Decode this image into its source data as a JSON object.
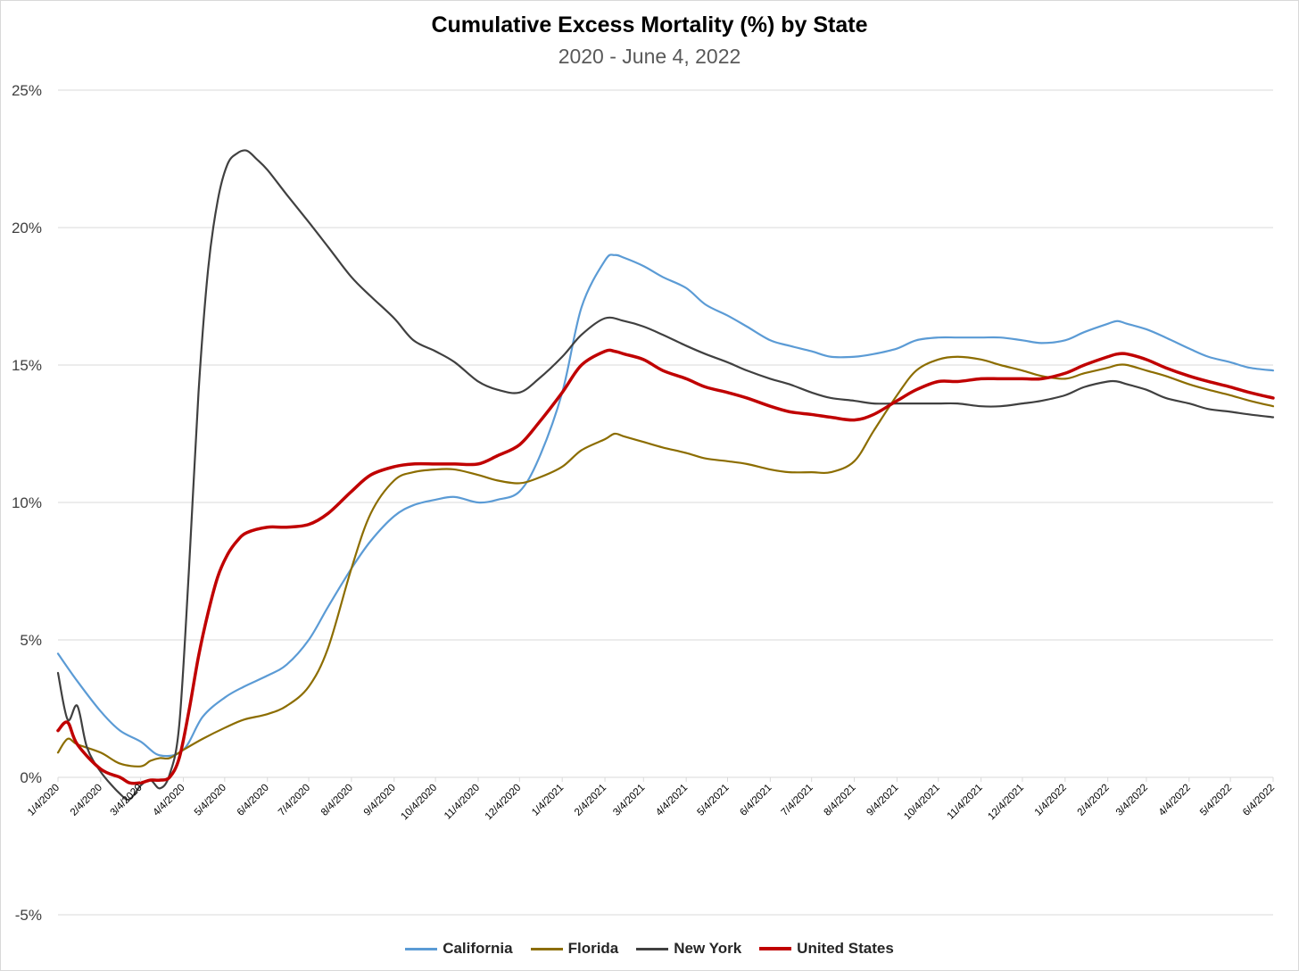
{
  "chart_data": {
    "type": "line",
    "title": "Cumulative Excess Mortality (%) by State",
    "subtitle": "2020 - June 4, 2022",
    "xlabel": "",
    "ylabel": "",
    "ylim": [
      -5,
      25
    ],
    "yticks": [
      -5,
      0,
      5,
      10,
      15,
      20,
      25
    ],
    "ytick_labels": [
      "-5%",
      "0%",
      "5%",
      "10%",
      "15%",
      "20%",
      "25%"
    ],
    "xticks": [
      "1/4/2020",
      "2/4/2020",
      "3/4/2020",
      "4/4/2020",
      "5/4/2020",
      "6/4/2020",
      "7/4/2020",
      "8/4/2020",
      "9/4/2020",
      "10/4/2020",
      "11/4/2020",
      "12/4/2020",
      "1/4/2021",
      "2/4/2021",
      "3/4/2021",
      "4/4/2021",
      "5/4/2021",
      "6/4/2021",
      "7/4/2021",
      "8/4/2021",
      "9/4/2021",
      "10/4/2021",
      "11/4/2021",
      "12/4/2021",
      "1/4/2022",
      "2/4/2022",
      "3/4/2022",
      "4/4/2022",
      "5/4/2022",
      "6/4/2022"
    ],
    "grid": true,
    "legend_position": "bottom",
    "series": [
      {
        "name": "California",
        "color": "#5b9bd5",
        "points": [
          [
            "2020-01-04",
            4.5
          ],
          [
            "2020-01-18",
            3.5
          ],
          [
            "2020-02-04",
            2.4
          ],
          [
            "2020-02-18",
            1.7
          ],
          [
            "2020-03-04",
            1.3
          ],
          [
            "2020-03-18",
            0.8
          ],
          [
            "2020-04-04",
            1.0
          ],
          [
            "2020-04-18",
            2.2
          ],
          [
            "2020-05-04",
            2.9
          ],
          [
            "2020-05-18",
            3.3
          ],
          [
            "2020-06-04",
            3.7
          ],
          [
            "2020-06-18",
            4.1
          ],
          [
            "2020-07-04",
            5.0
          ],
          [
            "2020-07-18",
            6.2
          ],
          [
            "2020-08-04",
            7.6
          ],
          [
            "2020-08-18",
            8.6
          ],
          [
            "2020-09-04",
            9.5
          ],
          [
            "2020-09-18",
            9.9
          ],
          [
            "2020-10-04",
            10.1
          ],
          [
            "2020-10-18",
            10.2
          ],
          [
            "2020-11-04",
            10.0
          ],
          [
            "2020-11-18",
            10.1
          ],
          [
            "2020-12-04",
            10.4
          ],
          [
            "2020-12-18",
            11.6
          ],
          [
            "2021-01-04",
            14.0
          ],
          [
            "2021-01-18",
            17.1
          ],
          [
            "2021-02-04",
            18.8
          ],
          [
            "2021-02-11",
            19.0
          ],
          [
            "2021-02-18",
            18.9
          ],
          [
            "2021-03-04",
            18.6
          ],
          [
            "2021-03-18",
            18.2
          ],
          [
            "2021-04-04",
            17.8
          ],
          [
            "2021-04-18",
            17.2
          ],
          [
            "2021-05-04",
            16.8
          ],
          [
            "2021-05-18",
            16.4
          ],
          [
            "2021-06-04",
            15.9
          ],
          [
            "2021-06-18",
            15.7
          ],
          [
            "2021-07-04",
            15.5
          ],
          [
            "2021-07-18",
            15.3
          ],
          [
            "2021-08-04",
            15.3
          ],
          [
            "2021-08-18",
            15.4
          ],
          [
            "2021-09-04",
            15.6
          ],
          [
            "2021-09-18",
            15.9
          ],
          [
            "2021-10-04",
            16.0
          ],
          [
            "2021-10-18",
            16.0
          ],
          [
            "2021-11-04",
            16.0
          ],
          [
            "2021-11-18",
            16.0
          ],
          [
            "2021-12-04",
            15.9
          ],
          [
            "2021-12-18",
            15.8
          ],
          [
            "2022-01-04",
            15.9
          ],
          [
            "2022-01-18",
            16.2
          ],
          [
            "2022-02-04",
            16.5
          ],
          [
            "2022-02-11",
            16.6
          ],
          [
            "2022-02-18",
            16.5
          ],
          [
            "2022-03-04",
            16.3
          ],
          [
            "2022-03-18",
            16.0
          ],
          [
            "2022-04-04",
            15.6
          ],
          [
            "2022-04-18",
            15.3
          ],
          [
            "2022-05-04",
            15.1
          ],
          [
            "2022-05-18",
            14.9
          ],
          [
            "2022-06-04",
            14.8
          ]
        ]
      },
      {
        "name": "Florida",
        "color": "#8c6d00",
        "points": [
          [
            "2020-01-04",
            0.9
          ],
          [
            "2020-01-11",
            1.4
          ],
          [
            "2020-01-18",
            1.2
          ],
          [
            "2020-02-04",
            0.9
          ],
          [
            "2020-02-18",
            0.5
          ],
          [
            "2020-03-04",
            0.4
          ],
          [
            "2020-03-11",
            0.6
          ],
          [
            "2020-03-18",
            0.7
          ],
          [
            "2020-03-25",
            0.7
          ],
          [
            "2020-04-04",
            1.0
          ],
          [
            "2020-04-18",
            1.4
          ],
          [
            "2020-05-04",
            1.8
          ],
          [
            "2020-05-18",
            2.1
          ],
          [
            "2020-06-04",
            2.3
          ],
          [
            "2020-06-18",
            2.6
          ],
          [
            "2020-07-04",
            3.3
          ],
          [
            "2020-07-18",
            4.7
          ],
          [
            "2020-08-04",
            7.6
          ],
          [
            "2020-08-18",
            9.6
          ],
          [
            "2020-09-04",
            10.8
          ],
          [
            "2020-09-18",
            11.1
          ],
          [
            "2020-10-04",
            11.2
          ],
          [
            "2020-10-18",
            11.2
          ],
          [
            "2020-11-04",
            11.0
          ],
          [
            "2020-11-18",
            10.8
          ],
          [
            "2020-12-04",
            10.7
          ],
          [
            "2020-12-18",
            10.9
          ],
          [
            "2021-01-04",
            11.3
          ],
          [
            "2021-01-18",
            11.9
          ],
          [
            "2021-02-04",
            12.3
          ],
          [
            "2021-02-11",
            12.5
          ],
          [
            "2021-02-18",
            12.4
          ],
          [
            "2021-03-04",
            12.2
          ],
          [
            "2021-03-18",
            12.0
          ],
          [
            "2021-04-04",
            11.8
          ],
          [
            "2021-04-18",
            11.6
          ],
          [
            "2021-05-04",
            11.5
          ],
          [
            "2021-05-18",
            11.4
          ],
          [
            "2021-06-04",
            11.2
          ],
          [
            "2021-06-18",
            11.1
          ],
          [
            "2021-07-04",
            11.1
          ],
          [
            "2021-07-18",
            11.1
          ],
          [
            "2021-08-04",
            11.5
          ],
          [
            "2021-08-18",
            12.6
          ],
          [
            "2021-09-04",
            13.9
          ],
          [
            "2021-09-18",
            14.8
          ],
          [
            "2021-10-04",
            15.2
          ],
          [
            "2021-10-18",
            15.3
          ],
          [
            "2021-11-04",
            15.2
          ],
          [
            "2021-11-18",
            15.0
          ],
          [
            "2021-12-04",
            14.8
          ],
          [
            "2021-12-18",
            14.6
          ],
          [
            "2022-01-04",
            14.5
          ],
          [
            "2022-01-18",
            14.7
          ],
          [
            "2022-02-04",
            14.9
          ],
          [
            "2022-02-11",
            15.0
          ],
          [
            "2022-02-18",
            15.0
          ],
          [
            "2022-03-04",
            14.8
          ],
          [
            "2022-03-18",
            14.6
          ],
          [
            "2022-04-04",
            14.3
          ],
          [
            "2022-04-18",
            14.1
          ],
          [
            "2022-05-04",
            13.9
          ],
          [
            "2022-05-18",
            13.7
          ],
          [
            "2022-06-04",
            13.5
          ]
        ]
      },
      {
        "name": "New York",
        "color": "#404040",
        "points": [
          [
            "2020-01-04",
            3.8
          ],
          [
            "2020-01-11",
            2.1
          ],
          [
            "2020-01-18",
            2.6
          ],
          [
            "2020-01-25",
            1.1
          ],
          [
            "2020-02-04",
            0.2
          ],
          [
            "2020-02-18",
            -0.6
          ],
          [
            "2020-02-25",
            -0.8
          ],
          [
            "2020-03-04",
            -0.3
          ],
          [
            "2020-03-11",
            -0.1
          ],
          [
            "2020-03-18",
            -0.4
          ],
          [
            "2020-03-25",
            0.1
          ],
          [
            "2020-04-01",
            1.9
          ],
          [
            "2020-04-08",
            7.5
          ],
          [
            "2020-04-15",
            14.0
          ],
          [
            "2020-04-22",
            18.5
          ],
          [
            "2020-04-29",
            21.0
          ],
          [
            "2020-05-06",
            22.3
          ],
          [
            "2020-05-13",
            22.7
          ],
          [
            "2020-05-20",
            22.8
          ],
          [
            "2020-05-27",
            22.5
          ],
          [
            "2020-06-04",
            22.1
          ],
          [
            "2020-06-18",
            21.2
          ],
          [
            "2020-07-04",
            20.2
          ],
          [
            "2020-07-18",
            19.3
          ],
          [
            "2020-08-04",
            18.2
          ],
          [
            "2020-08-18",
            17.5
          ],
          [
            "2020-09-04",
            16.7
          ],
          [
            "2020-09-18",
            15.9
          ],
          [
            "2020-10-04",
            15.5
          ],
          [
            "2020-10-18",
            15.1
          ],
          [
            "2020-11-04",
            14.4
          ],
          [
            "2020-11-18",
            14.1
          ],
          [
            "2020-12-04",
            14.0
          ],
          [
            "2020-12-18",
            14.5
          ],
          [
            "2021-01-04",
            15.3
          ],
          [
            "2021-01-18",
            16.1
          ],
          [
            "2021-02-04",
            16.7
          ],
          [
            "2021-02-18",
            16.6
          ],
          [
            "2021-03-04",
            16.4
          ],
          [
            "2021-03-18",
            16.1
          ],
          [
            "2021-04-04",
            15.7
          ],
          [
            "2021-04-18",
            15.4
          ],
          [
            "2021-05-04",
            15.1
          ],
          [
            "2021-05-18",
            14.8
          ],
          [
            "2021-06-04",
            14.5
          ],
          [
            "2021-06-18",
            14.3
          ],
          [
            "2021-07-04",
            14.0
          ],
          [
            "2021-07-18",
            13.8
          ],
          [
            "2021-08-04",
            13.7
          ],
          [
            "2021-08-18",
            13.6
          ],
          [
            "2021-09-04",
            13.6
          ],
          [
            "2021-09-18",
            13.6
          ],
          [
            "2021-10-04",
            13.6
          ],
          [
            "2021-10-18",
            13.6
          ],
          [
            "2021-11-04",
            13.5
          ],
          [
            "2021-11-18",
            13.5
          ],
          [
            "2021-12-04",
            13.6
          ],
          [
            "2021-12-18",
            13.7
          ],
          [
            "2022-01-04",
            13.9
          ],
          [
            "2022-01-18",
            14.2
          ],
          [
            "2022-02-04",
            14.4
          ],
          [
            "2022-02-11",
            14.4
          ],
          [
            "2022-02-18",
            14.3
          ],
          [
            "2022-03-04",
            14.1
          ],
          [
            "2022-03-18",
            13.8
          ],
          [
            "2022-04-04",
            13.6
          ],
          [
            "2022-04-18",
            13.4
          ],
          [
            "2022-05-04",
            13.3
          ],
          [
            "2022-05-18",
            13.2
          ],
          [
            "2022-06-04",
            13.1
          ]
        ]
      },
      {
        "name": "United States",
        "color": "#c00000",
        "points": [
          [
            "2020-01-04",
            1.7
          ],
          [
            "2020-01-11",
            2.0
          ],
          [
            "2020-01-18",
            1.2
          ],
          [
            "2020-02-04",
            0.3
          ],
          [
            "2020-02-18",
            0.0
          ],
          [
            "2020-02-25",
            -0.2
          ],
          [
            "2020-03-04",
            -0.2
          ],
          [
            "2020-03-11",
            -0.1
          ],
          [
            "2020-03-18",
            -0.1
          ],
          [
            "2020-03-25",
            0.0
          ],
          [
            "2020-04-01",
            0.7
          ],
          [
            "2020-04-08",
            2.4
          ],
          [
            "2020-04-15",
            4.4
          ],
          [
            "2020-04-22",
            6.0
          ],
          [
            "2020-04-29",
            7.3
          ],
          [
            "2020-05-06",
            8.1
          ],
          [
            "2020-05-13",
            8.6
          ],
          [
            "2020-05-20",
            8.9
          ],
          [
            "2020-06-04",
            9.1
          ],
          [
            "2020-06-18",
            9.1
          ],
          [
            "2020-07-04",
            9.2
          ],
          [
            "2020-07-18",
            9.6
          ],
          [
            "2020-08-04",
            10.4
          ],
          [
            "2020-08-18",
            11.0
          ],
          [
            "2020-09-04",
            11.3
          ],
          [
            "2020-09-18",
            11.4
          ],
          [
            "2020-10-04",
            11.4
          ],
          [
            "2020-10-18",
            11.4
          ],
          [
            "2020-11-04",
            11.4
          ],
          [
            "2020-11-18",
            11.7
          ],
          [
            "2020-12-04",
            12.1
          ],
          [
            "2020-12-18",
            12.9
          ],
          [
            "2021-01-04",
            14.0
          ],
          [
            "2021-01-18",
            15.0
          ],
          [
            "2021-02-04",
            15.5
          ],
          [
            "2021-02-11",
            15.5
          ],
          [
            "2021-02-18",
            15.4
          ],
          [
            "2021-03-04",
            15.2
          ],
          [
            "2021-03-18",
            14.8
          ],
          [
            "2021-04-04",
            14.5
          ],
          [
            "2021-04-18",
            14.2
          ],
          [
            "2021-05-04",
            14.0
          ],
          [
            "2021-05-18",
            13.8
          ],
          [
            "2021-06-04",
            13.5
          ],
          [
            "2021-06-18",
            13.3
          ],
          [
            "2021-07-04",
            13.2
          ],
          [
            "2021-07-18",
            13.1
          ],
          [
            "2021-08-04",
            13.0
          ],
          [
            "2021-08-18",
            13.2
          ],
          [
            "2021-09-04",
            13.7
          ],
          [
            "2021-09-18",
            14.1
          ],
          [
            "2021-10-04",
            14.4
          ],
          [
            "2021-10-18",
            14.4
          ],
          [
            "2021-11-04",
            14.5
          ],
          [
            "2021-11-18",
            14.5
          ],
          [
            "2021-12-04",
            14.5
          ],
          [
            "2021-12-18",
            14.5
          ],
          [
            "2022-01-04",
            14.7
          ],
          [
            "2022-01-18",
            15.0
          ],
          [
            "2022-02-04",
            15.3
          ],
          [
            "2022-02-11",
            15.4
          ],
          [
            "2022-02-18",
            15.4
          ],
          [
            "2022-03-04",
            15.2
          ],
          [
            "2022-03-18",
            14.9
          ],
          [
            "2022-04-04",
            14.6
          ],
          [
            "2022-04-18",
            14.4
          ],
          [
            "2022-05-04",
            14.2
          ],
          [
            "2022-05-18",
            14.0
          ],
          [
            "2022-06-04",
            13.8
          ]
        ]
      }
    ]
  }
}
